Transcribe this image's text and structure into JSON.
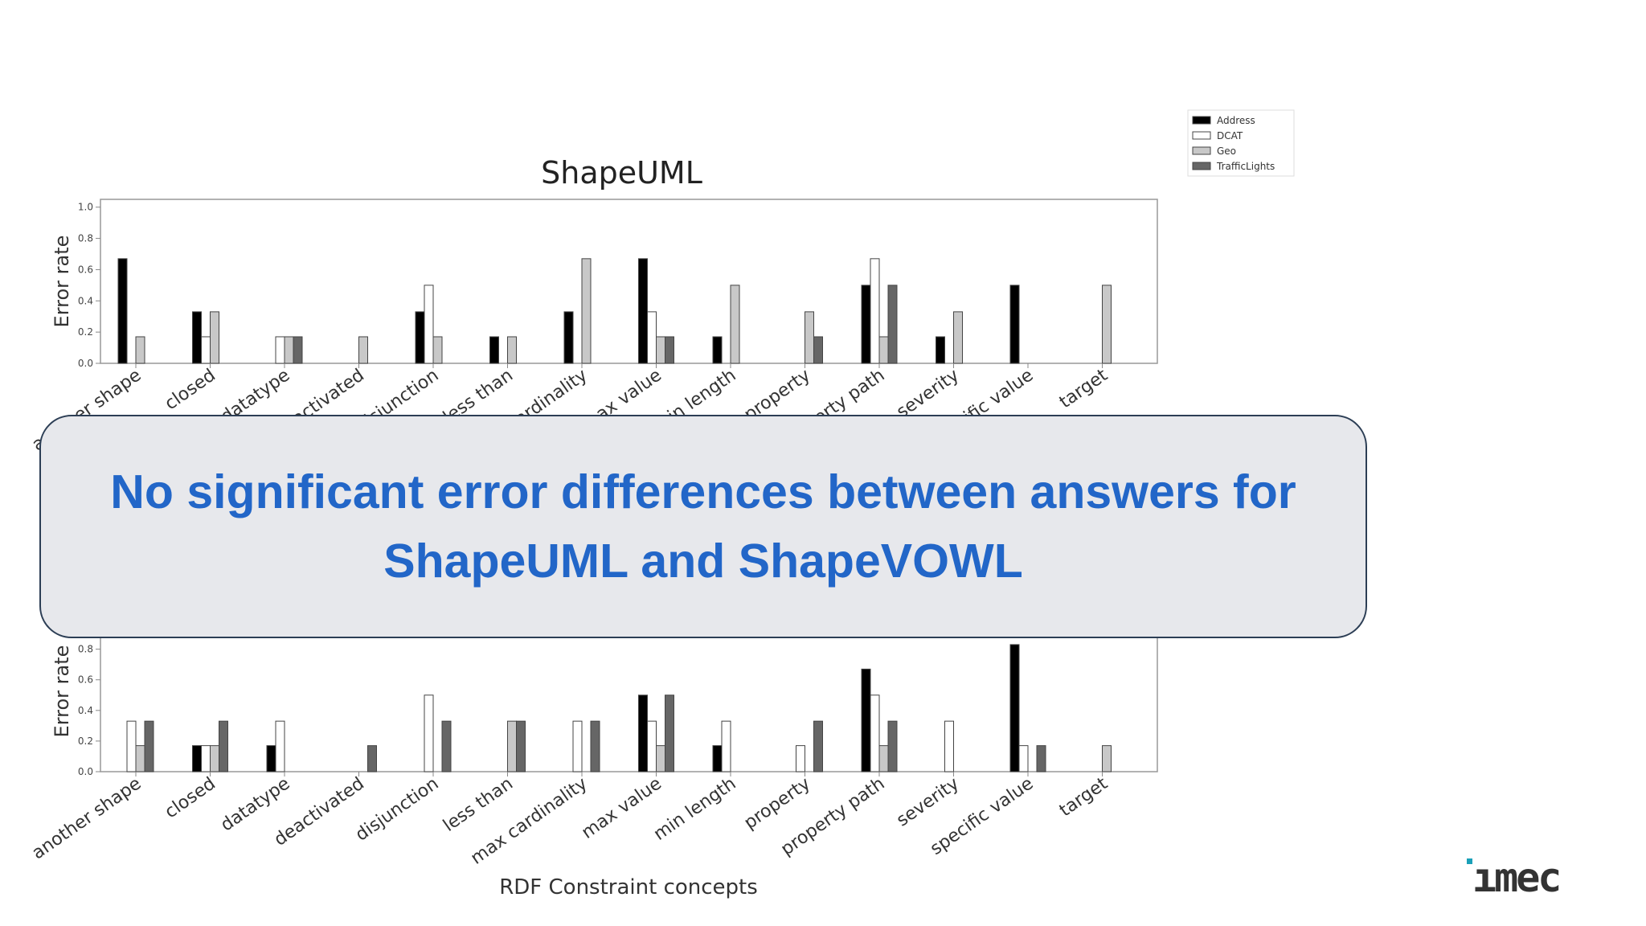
{
  "slide": {
    "callout_line1": "No significant error differences between answers for",
    "callout_line2": "ShapeUML and ShapeVOWL",
    "logo_text": "ımec"
  },
  "chart_data": [
    {
      "type": "bar",
      "title": "ShapeUML",
      "ylabel": "Error rate",
      "xlabel": "",
      "ylim": [
        0,
        1.05
      ],
      "yticks": [
        "0.0",
        "0.2",
        "0.4",
        "0.6",
        "0.8",
        "1.0"
      ],
      "categories": [
        "another shape",
        "closed",
        "datatype",
        "deactivated",
        "disjunction",
        "less than",
        "max cardinality",
        "max value",
        "min length",
        "property",
        "property path",
        "severity",
        "specific value",
        "target"
      ],
      "series": [
        {
          "name": "Address",
          "color": "#000000",
          "values": [
            0.67,
            0.33,
            0,
            0,
            0.33,
            0.17,
            0.33,
            0.67,
            0.17,
            0,
            0.5,
            0.17,
            0.5,
            0
          ]
        },
        {
          "name": "DCAT",
          "color": "#ffffff",
          "values": [
            0,
            0.17,
            0.17,
            0,
            0.5,
            0,
            0,
            0.33,
            0,
            0,
            0.67,
            0,
            0,
            0
          ]
        },
        {
          "name": "Geo",
          "color": "#c8c8c8",
          "values": [
            0.17,
            0.33,
            0.17,
            0.17,
            0.17,
            0.17,
            0.67,
            0.17,
            0.5,
            0.33,
            0.17,
            0.33,
            0,
            0.5
          ]
        },
        {
          "name": "TrafficLights",
          "color": "#666666",
          "values": [
            0,
            0,
            0.17,
            0,
            0,
            0,
            0,
            0.17,
            0,
            0.17,
            0.5,
            0,
            0,
            0
          ]
        }
      ]
    },
    {
      "type": "bar",
      "title": "",
      "ylabel": "Error rate",
      "xlabel": "RDF Constraint concepts",
      "ylim": [
        0,
        1.05
      ],
      "yticks": [
        "0.0",
        "0.2",
        "0.4",
        "0.6",
        "0.8"
      ],
      "categories": [
        "another shape",
        "closed",
        "datatype",
        "deactivated",
        "disjunction",
        "less than",
        "max cardinality",
        "max value",
        "min length",
        "property",
        "property path",
        "severity",
        "specific value",
        "target"
      ],
      "series": [
        {
          "name": "Address",
          "color": "#000000",
          "values": [
            0,
            0.17,
            0.17,
            0,
            0,
            0,
            0,
            0.5,
            0.17,
            0,
            0.67,
            0,
            0.83,
            0
          ]
        },
        {
          "name": "DCAT",
          "color": "#ffffff",
          "values": [
            0.33,
            0.17,
            0.33,
            0,
            0.5,
            0,
            0.33,
            0.33,
            0.33,
            0.17,
            0.5,
            0.33,
            0.17,
            0
          ]
        },
        {
          "name": "Geo",
          "color": "#c8c8c8",
          "values": [
            0.17,
            0.17,
            0,
            0,
            0,
            0.33,
            0,
            0.17,
            0,
            0,
            0.17,
            0,
            0,
            0.17
          ]
        },
        {
          "name": "TrafficLights",
          "color": "#666666",
          "values": [
            0.33,
            0.33,
            0,
            0.17,
            0.33,
            0.33,
            0.33,
            0.5,
            0,
            0.33,
            0.33,
            0,
            0.17,
            0
          ]
        }
      ]
    }
  ]
}
